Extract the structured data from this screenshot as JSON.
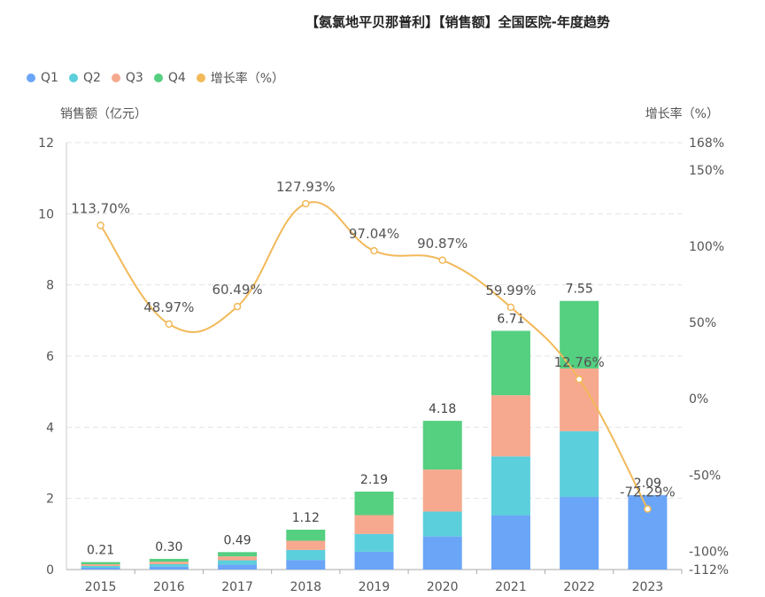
{
  "title": "【氨氯地平贝那普利】【销售额】全国医院-年度趋势",
  "chart_data": {
    "type": "bar",
    "stacked": true,
    "categories": [
      "2015",
      "2016",
      "2017",
      "2018",
      "2019",
      "2020",
      "2021",
      "2022",
      "2023"
    ],
    "series": [
      {
        "name": "Q1",
        "color": "#6aa5f7",
        "values": [
          0.05,
          0.08,
          0.14,
          0.27,
          0.5,
          0.93,
          1.52,
          2.04,
          2.09
        ]
      },
      {
        "name": "Q2",
        "color": "#5ccfdc",
        "values": [
          0.05,
          0.07,
          0.12,
          0.28,
          0.5,
          0.7,
          1.66,
          1.85,
          0
        ]
      },
      {
        "name": "Q3",
        "color": "#f6a98e",
        "values": [
          0.05,
          0.07,
          0.11,
          0.26,
          0.53,
          1.18,
          1.72,
          1.76,
          0
        ]
      },
      {
        "name": "Q4",
        "color": "#55cf80",
        "values": [
          0.06,
          0.08,
          0.12,
          0.31,
          0.66,
          1.37,
          1.81,
          1.9,
          0
        ]
      }
    ],
    "totals": [
      0.21,
      0.3,
      0.49,
      1.12,
      2.19,
      4.18,
      6.71,
      7.55,
      2.09
    ],
    "total_labels": [
      "0.21",
      "0.30",
      "0.49",
      "1.12",
      "2.19",
      "4.18",
      "6.71",
      "7.55",
      "2.09"
    ],
    "growth": {
      "name": "增长率（%）",
      "color": "#f2b95a",
      "values": [
        113.7,
        48.97,
        60.49,
        127.93,
        97.04,
        90.87,
        59.99,
        12.76,
        -72.29
      ],
      "labels": [
        "113.70%",
        "48.97%",
        "60.49%",
        "127.93%",
        "97.04%",
        "90.87%",
        "59.99%",
        "12.76%",
        "-72.29%"
      ]
    },
    "ylabel": "销售额（亿元）",
    "y2label": "增长率（%）",
    "ylim": [
      0,
      12
    ],
    "yticks": [
      "0",
      "2",
      "4",
      "6",
      "8",
      "10",
      "12"
    ],
    "y2lim": [
      -112,
      168
    ],
    "y2ticks": [
      {
        "value": 168,
        "label": "168%"
      },
      {
        "value": 150,
        "label": "150%"
      },
      {
        "value": 100,
        "label": "100%"
      },
      {
        "value": 50,
        "label": "50%"
      },
      {
        "value": 0,
        "label": "0%"
      },
      {
        "value": -50,
        "label": "-50%"
      },
      {
        "value": -100,
        "label": "-100%"
      },
      {
        "value": -112,
        "label": "-112%"
      }
    ],
    "grid": true,
    "legend_position": "top-left"
  }
}
